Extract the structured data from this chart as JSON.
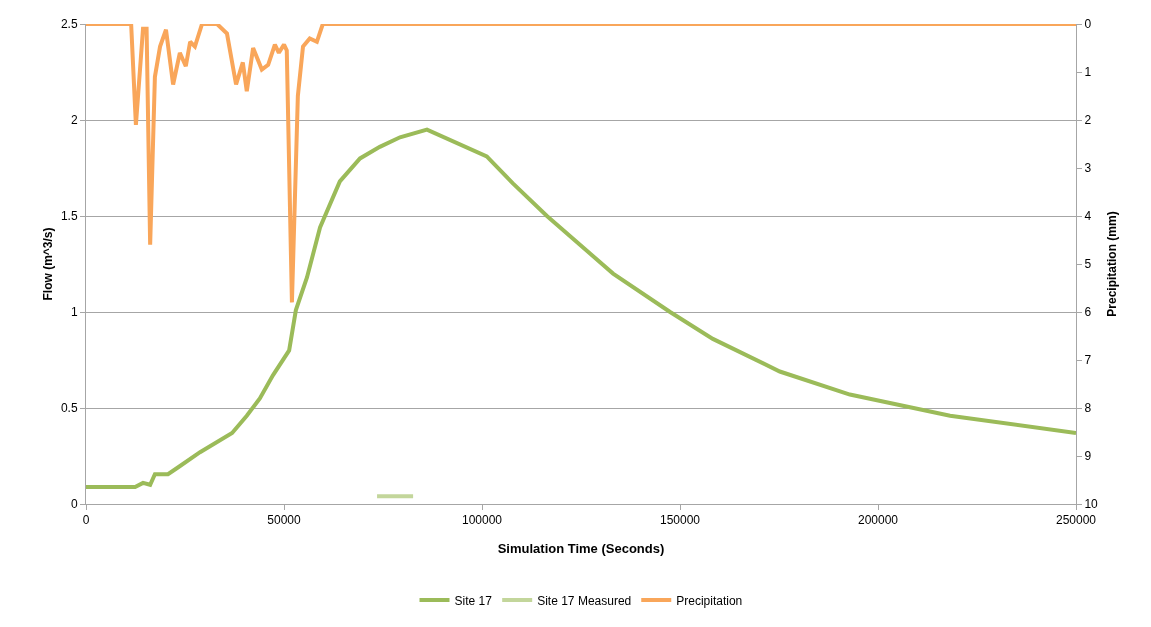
{
  "chart_data": {
    "type": "line",
    "xlabel": "Simulation Time (Seconds)",
    "ylabel": "Flow (m^3/s)",
    "y2label": "Precipitation (mm)",
    "xlim": [
      0,
      250000
    ],
    "xticks": [
      0,
      50000,
      100000,
      150000,
      200000,
      250000
    ],
    "ylim": [
      0,
      2.5
    ],
    "yticks": [
      0,
      0.5,
      1,
      1.5,
      2,
      2.5
    ],
    "y2lim": [
      10,
      0
    ],
    "y2ticks": [
      0,
      1,
      2,
      3,
      4,
      5,
      6,
      7,
      8,
      9,
      10
    ],
    "grid": "y",
    "legend": "bottom",
    "marker": "none",
    "line_style": "solid",
    "series": [
      {
        "name": "Site 17",
        "color": "#9bbb59",
        "x": [
          0,
          12400,
          14400,
          16200,
          17400,
          20700,
          23200,
          28800,
          36900,
          40600,
          43900,
          47200,
          51300,
          53000,
          55800,
          59100,
          64100,
          69200,
          74200,
          79300,
          86100,
          101200,
          107800,
          116400,
          133100,
          147500,
          158300,
          175200,
          192900,
          218200,
          250000
        ],
        "values": [
          0.088,
          0.088,
          0.11,
          0.1,
          0.155,
          0.155,
          0.19,
          0.27,
          0.37,
          0.46,
          0.55,
          0.67,
          0.8,
          1.01,
          1.18,
          1.44,
          1.68,
          1.8,
          1.86,
          1.91,
          1.95,
          1.81,
          1.67,
          1.5,
          1.2,
          1.0,
          0.86,
          0.69,
          0.57,
          0.46,
          0.37
        ]
      },
      {
        "name": "Site 17 Measured",
        "color": "#c3d69b",
        "x": [
          73500,
          78000,
          82600
        ],
        "values": [
          0.04,
          0.04,
          0.04
        ]
      },
      {
        "name": "Precipitation",
        "color": "#f9a65a",
        "axis": "y2",
        "x": [
          0,
          11400,
          12600,
          14400,
          15300,
          16200,
          17400,
          18700,
          20200,
          22000,
          23700,
          25200,
          26300,
          27500,
          29300,
          33100,
          35600,
          37900,
          39600,
          40600,
          42200,
          44400,
          46000,
          47700,
          48700,
          50000,
          50700,
          52000,
          53500,
          54800,
          56500,
          58300,
          59800,
          250000
        ],
        "values": [
          0,
          0,
          2.1,
          0.1,
          0.1,
          4.6,
          1.1,
          0.47,
          0.12,
          1.26,
          0.6,
          0.88,
          0.37,
          0.47,
          0,
          0,
          0.2,
          1.26,
          0.8,
          1.4,
          0.5,
          0.95,
          0.85,
          0.43,
          0.6,
          0.43,
          0.55,
          5.8,
          1.5,
          0.47,
          0.3,
          0.37,
          0,
          0
        ]
      }
    ]
  }
}
